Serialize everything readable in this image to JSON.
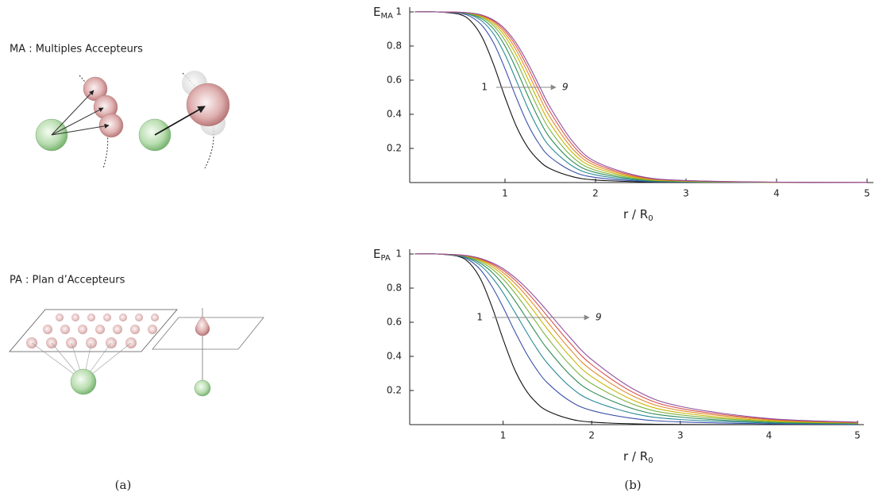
{
  "panels": {
    "a": {
      "label": "(a)",
      "ma_title": "MA : Multiples Accepteurs",
      "pa_title": "PA : Plan d’Accepteurs"
    },
    "b": {
      "label": "(b)"
    }
  },
  "chart_data": [
    {
      "type": "line",
      "ylabel": "E",
      "ylabel_sub": "MA",
      "xlabel": "r / R",
      "xlabel_sub": "0",
      "annotations": [
        {
          "text": "1"
        },
        {
          "text": "9"
        }
      ],
      "xlim": [
        0,
        5
      ],
      "ylim": [
        0,
        1
      ],
      "xticks": [
        1,
        2,
        3,
        4,
        5
      ],
      "yticks": [
        0.2,
        0.4,
        0.6,
        0.8,
        1
      ],
      "x": [
        0,
        0.25,
        0.5,
        0.625,
        0.75,
        0.875,
        1,
        1.125,
        1.25,
        1.375,
        1.5,
        1.75,
        2,
        2.5,
        3,
        4,
        5
      ],
      "series": [
        {
          "color": "#111111",
          "values": [
            1,
            1,
            0.985,
            0.944,
            0.849,
            0.69,
            0.5,
            0.33,
            0.208,
            0.129,
            0.081,
            0.034,
            0.015,
            0.004,
            0.001,
            0,
            0
          ]
        },
        {
          "color": "#3b4fa8",
          "values": [
            1,
            1,
            0.992,
            0.971,
            0.918,
            0.817,
            0.667,
            0.497,
            0.344,
            0.228,
            0.149,
            0.065,
            0.03,
            0.008,
            0.003,
            0,
            0
          ]
        },
        {
          "color": "#2a8a9a",
          "values": [
            1,
            1,
            0.995,
            0.981,
            0.944,
            0.87,
            0.75,
            0.597,
            0.44,
            0.307,
            0.208,
            0.095,
            0.045,
            0.012,
            0.004,
            0.001,
            0
          ]
        },
        {
          "color": "#2e8b57",
          "values": [
            1,
            1,
            0.996,
            0.985,
            0.957,
            0.899,
            0.8,
            0.664,
            0.512,
            0.372,
            0.26,
            0.122,
            0.059,
            0.016,
            0.005,
            0.001,
            0
          ]
        },
        {
          "color": "#7cb342",
          "values": [
            1,
            1,
            0.997,
            0.988,
            0.966,
            0.918,
            0.833,
            0.712,
            0.567,
            0.425,
            0.305,
            0.148,
            0.072,
            0.02,
            0.007,
            0.001,
            0
          ]
        },
        {
          "color": "#c9b400",
          "values": [
            1,
            1,
            0.997,
            0.99,
            0.971,
            0.93,
            0.857,
            0.747,
            0.611,
            0.47,
            0.345,
            0.173,
            0.086,
            0.024,
            0.008,
            0.001,
            0
          ]
        },
        {
          "color": "#e08a2a",
          "values": [
            1,
            1,
            0.998,
            0.992,
            0.975,
            0.94,
            0.875,
            0.775,
            0.647,
            0.509,
            0.381,
            0.196,
            0.099,
            0.028,
            0.01,
            0.002,
            0
          ]
        },
        {
          "color": "#d9534f",
          "values": [
            1,
            1,
            0.998,
            0.993,
            0.978,
            0.947,
            0.889,
            0.798,
            0.677,
            0.542,
            0.413,
            0.218,
            0.111,
            0.032,
            0.011,
            0.002,
            0.001
          ]
        },
        {
          "color": "#8e4f9e",
          "values": [
            1,
            1,
            0.998,
            0.993,
            0.981,
            0.952,
            0.9,
            0.816,
            0.702,
            0.571,
            0.441,
            0.239,
            0.123,
            0.036,
            0.012,
            0.002,
            0.001
          ]
        }
      ]
    },
    {
      "type": "line",
      "ylabel": "E",
      "ylabel_sub": "PA",
      "xlabel": "r / R",
      "xlabel_sub": "0",
      "annotations": [
        {
          "text": "1"
        },
        {
          "text": "9"
        }
      ],
      "xlim": [
        0,
        5
      ],
      "ylim": [
        0,
        1
      ],
      "xticks": [
        1,
        2,
        3,
        4,
        5
      ],
      "yticks": [
        0.2,
        0.4,
        0.6,
        0.8,
        1
      ],
      "x": [
        0,
        0.25,
        0.5,
        0.625,
        0.75,
        0.875,
        1,
        1.125,
        1.25,
        1.375,
        1.5,
        1.75,
        2,
        2.5,
        3,
        4,
        5
      ],
      "series": [
        {
          "color": "#111111",
          "values": [
            1,
            1,
            0.985,
            0.944,
            0.849,
            0.69,
            0.5,
            0.33,
            0.208,
            0.129,
            0.081,
            0.034,
            0.015,
            0.004,
            0.001,
            0,
            0
          ]
        },
        {
          "color": "#3b4fa8",
          "values": [
            1,
            1,
            0.988,
            0.961,
            0.904,
            0.81,
            0.688,
            0.554,
            0.43,
            0.326,
            0.245,
            0.14,
            0.083,
            0.034,
            0.016,
            0.005,
            0.002
          ]
        },
        {
          "color": "#2a8a9a",
          "values": [
            1,
            1,
            0.99,
            0.97,
            0.93,
            0.863,
            0.773,
            0.666,
            0.555,
            0.45,
            0.36,
            0.225,
            0.142,
            0.062,
            0.03,
            0.01,
            0.004
          ]
        },
        {
          "color": "#2e8b57",
          "values": [
            1,
            1,
            0.992,
            0.976,
            0.944,
            0.893,
            0.821,
            0.733,
            0.635,
            0.536,
            0.444,
            0.295,
            0.194,
            0.088,
            0.044,
            0.014,
            0.006
          ]
        },
        {
          "color": "#7cb342",
          "values": [
            1,
            1,
            0.993,
            0.98,
            0.954,
            0.912,
            0.853,
            0.777,
            0.69,
            0.599,
            0.509,
            0.353,
            0.24,
            0.113,
            0.057,
            0.019,
            0.008
          ]
        },
        {
          "color": "#c9b400",
          "values": [
            1,
            1,
            0.994,
            0.982,
            0.961,
            0.926,
            0.875,
            0.809,
            0.731,
            0.646,
            0.56,
            0.403,
            0.281,
            0.136,
            0.07,
            0.023,
            0.01
          ]
        },
        {
          "color": "#e08a2a",
          "values": [
            1,
            1,
            0.994,
            0.985,
            0.966,
            0.936,
            0.891,
            0.833,
            0.763,
            0.684,
            0.602,
            0.445,
            0.318,
            0.159,
            0.083,
            0.028,
            0.011
          ]
        },
        {
          "color": "#d9534f",
          "values": [
            1,
            1,
            0.995,
            0.986,
            0.97,
            0.943,
            0.904,
            0.852,
            0.787,
            0.714,
            0.636,
            0.482,
            0.351,
            0.18,
            0.095,
            0.032,
            0.013
          ]
        },
        {
          "color": "#8e4f9e",
          "values": [
            1,
            1,
            0.995,
            0.988,
            0.973,
            0.949,
            0.914,
            0.866,
            0.807,
            0.739,
            0.665,
            0.514,
            0.381,
            0.2,
            0.107,
            0.036,
            0.015
          ]
        }
      ]
    }
  ]
}
